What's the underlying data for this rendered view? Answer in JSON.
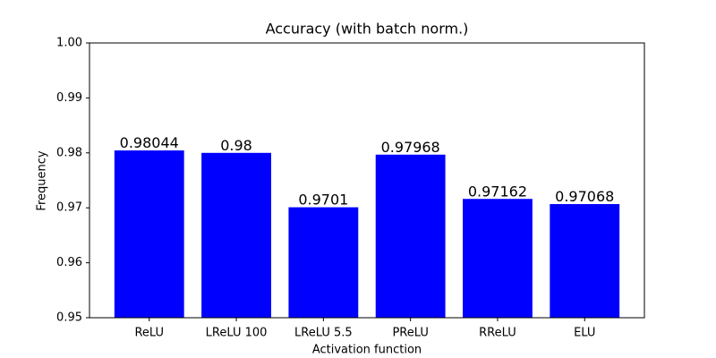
{
  "chart_data": {
    "type": "bar",
    "title": "Accuracy (with batch norm.)",
    "x_label": "Activation function",
    "y_label": "Frequency",
    "categories": [
      "ReLU",
      "LReLU 100",
      "LReLU 5.5",
      "PReLU",
      "RReLU",
      "ELU"
    ],
    "values": [
      0.98044,
      0.98,
      0.9701,
      0.97968,
      0.97162,
      0.97068
    ],
    "color": "#0000ff",
    "ylim": [
      0.95,
      1.0
    ],
    "yticks": [
      0.95,
      0.96,
      0.97,
      0.98,
      0.99,
      {
        "value": 1,
        "label": "1.00"
      }
    ]
  }
}
